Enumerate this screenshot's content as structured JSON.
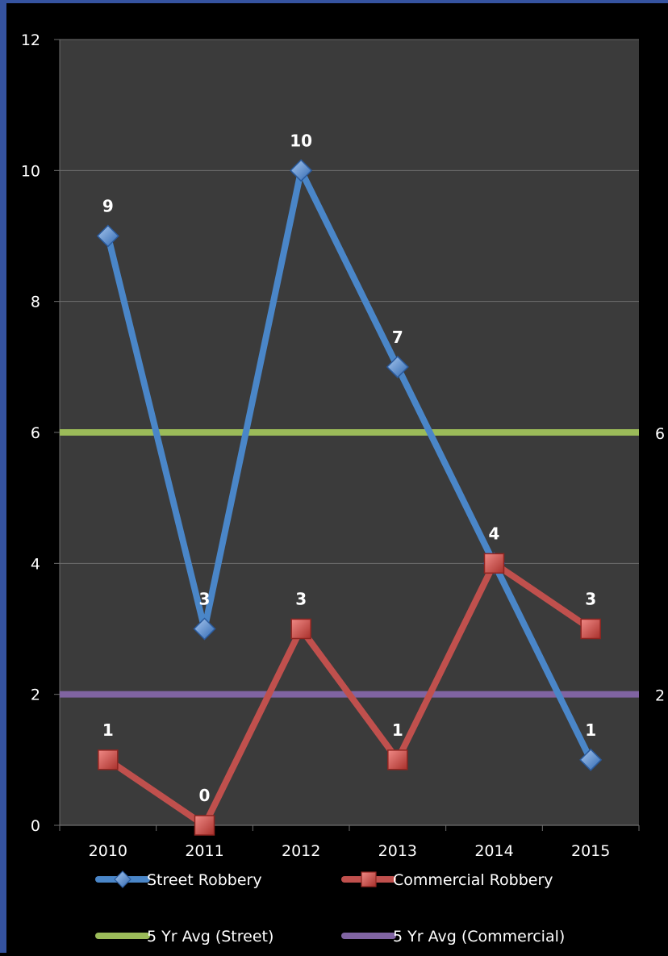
{
  "chart_data": {
    "type": "line",
    "categories": [
      "2010",
      "2011",
      "2012",
      "2013",
      "2014",
      "2015"
    ],
    "ylim": [
      0,
      12
    ],
    "yticks": [
      "0",
      "2",
      "4",
      "6",
      "8",
      "10",
      "12"
    ],
    "grid": true,
    "legend_position": "bottom",
    "series": [
      {
        "name": "Street Robbery",
        "values": [
          9,
          3,
          10,
          7,
          4,
          1
        ],
        "labels": [
          "9",
          "3",
          "10",
          "7",
          "",
          "1"
        ],
        "color": "#4a86c8",
        "marker": "diamond"
      },
      {
        "name": "Commercial Robbery",
        "values": [
          1,
          0,
          3,
          1,
          4,
          3
        ],
        "labels": [
          "1",
          "0",
          "3",
          "1",
          "4",
          "3"
        ],
        "color": "#c0504d",
        "marker": "square"
      },
      {
        "name": "5 Yr Avg (Street)",
        "values": [
          6,
          6,
          6,
          6,
          6,
          6
        ],
        "end_label": "6",
        "color": "#9bbb59",
        "marker": "none"
      },
      {
        "name": "5 Yr Avg (Commercial)",
        "values": [
          2,
          2,
          2,
          2,
          2,
          2
        ],
        "end_label": "2",
        "color": "#8064a2",
        "marker": "none"
      }
    ]
  },
  "colors": {
    "background": "#000000",
    "plot_area": "#3b3b3b",
    "frame": "#3553a0",
    "gridline": "#6e6e6e",
    "text": "#ffffff"
  }
}
